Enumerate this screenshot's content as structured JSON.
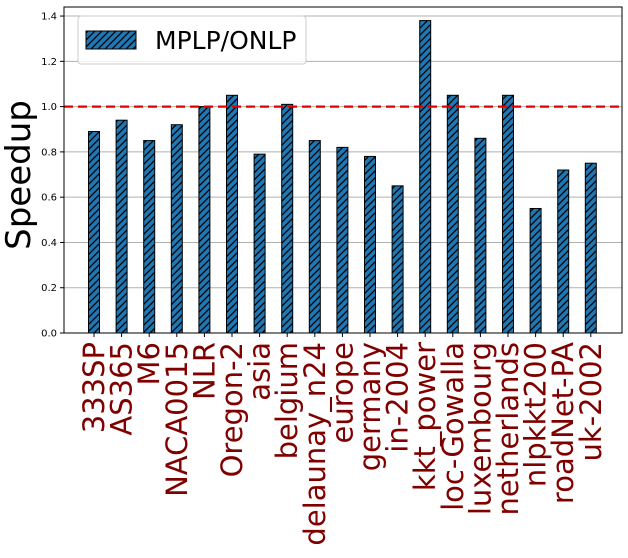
{
  "chart_data": {
    "type": "bar",
    "title": "",
    "xlabel": "",
    "ylabel": "Speedup",
    "ylim": [
      0,
      1.44
    ],
    "yticks": [
      0.0,
      0.2,
      0.4,
      0.6,
      0.8,
      1.0,
      1.2,
      1.4
    ],
    "ytick_labels": [
      "0.0",
      "0.2",
      "0.4",
      "0.6",
      "0.8",
      "1.0",
      "1.2",
      "1.4"
    ],
    "grid": "horizontal",
    "legend_position": "top-left",
    "reference_line": {
      "y": 1.0,
      "style": "dashed",
      "color": "#e00000"
    },
    "categories": [
      "333SP",
      "AS365",
      "M6",
      "NACA0015",
      "NLR",
      "Oregon-2",
      "asia",
      "belgium",
      "delaunay_n24",
      "europe",
      "germany",
      "in-2004",
      "kkt_power",
      "loc-Gowalla",
      "luxembourg",
      "netherlands",
      "nlpkkt200",
      "roadNet-PA",
      "uk-2002"
    ],
    "series": [
      {
        "name": "MPLP/ONLP",
        "color": "#1f77b4",
        "hatch": "diagonal",
        "values": [
          0.89,
          0.94,
          0.85,
          0.92,
          1.0,
          1.05,
          0.79,
          1.01,
          0.85,
          0.82,
          0.78,
          0.65,
          1.38,
          1.05,
          0.86,
          1.05,
          0.55,
          0.72,
          0.75
        ]
      }
    ],
    "category_label_color": "#800000"
  }
}
